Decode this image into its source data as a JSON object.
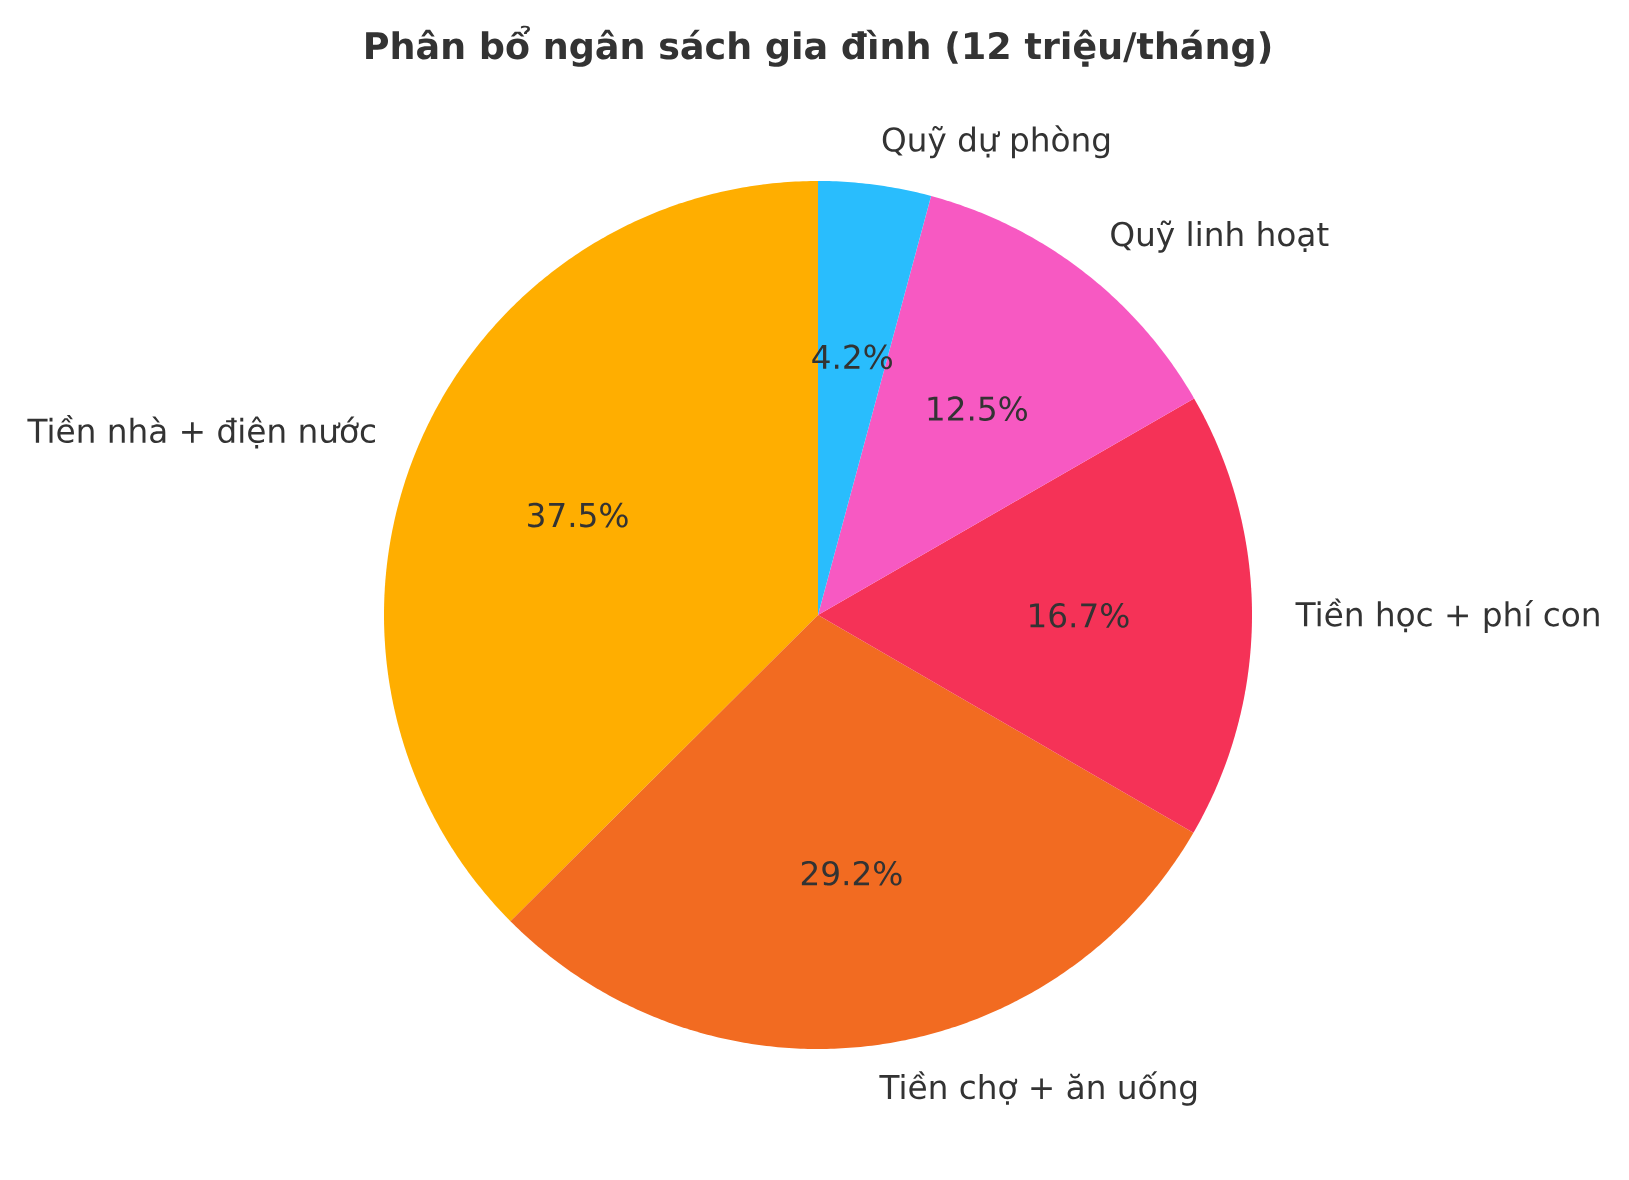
{
  "chart_data": {
    "type": "pie",
    "title": "Phân bổ ngân sách gia đình (12 triệu/tháng)",
    "categories": [
      "Tiền nhà + điện nước",
      "Tiền chợ + ăn uống",
      "Tiền học + phí con",
      "Quỹ linh hoạt",
      "Quỹ dự phòng"
    ],
    "values": [
      37.5,
      29.2,
      16.7,
      12.5,
      4.2
    ],
    "colors": [
      "#ffae00",
      "#f26b21",
      "#f53257",
      "#f759c2",
      "#29bdfd"
    ],
    "value_labels": [
      "37.5%",
      "29.2%",
      "16.7%",
      "12.5%",
      "4.2%"
    ]
  }
}
